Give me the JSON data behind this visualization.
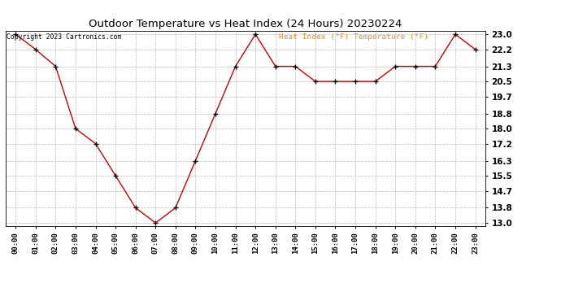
{
  "title": "Outdoor Temperature vs Heat Index (24 Hours) 20230224",
  "copyright": "Copyright 2023 Cartronics.com",
  "legend_text": "Heat Index (°F) Temperature (°F)",
  "x_labels": [
    "00:00",
    "01:00",
    "02:00",
    "03:00",
    "04:00",
    "05:00",
    "06:00",
    "07:00",
    "08:00",
    "09:00",
    "10:00",
    "11:00",
    "12:00",
    "13:00",
    "14:00",
    "15:00",
    "16:00",
    "17:00",
    "18:00",
    "19:00",
    "20:00",
    "21:00",
    "22:00",
    "23:00"
  ],
  "temperature": [
    23.0,
    22.2,
    21.3,
    18.0,
    17.2,
    15.5,
    13.8,
    13.0,
    13.8,
    16.3,
    18.8,
    21.3,
    23.0,
    21.3,
    21.3,
    20.5,
    20.5,
    20.5,
    20.5,
    21.3,
    21.3,
    21.3,
    23.0,
    22.2
  ],
  "y_ticks": [
    13.0,
    13.8,
    14.7,
    15.5,
    16.3,
    17.2,
    18.0,
    18.8,
    19.7,
    20.5,
    21.3,
    22.2,
    23.0
  ],
  "ylim": [
    12.85,
    23.2
  ],
  "line_color": "#cc0000",
  "marker_color": "#000000",
  "bg_color": "#ffffff",
  "grid_color": "#bbbbbb",
  "title_color": "#000000",
  "copyright_color": "#000000",
  "legend_color": "#ff8c00"
}
